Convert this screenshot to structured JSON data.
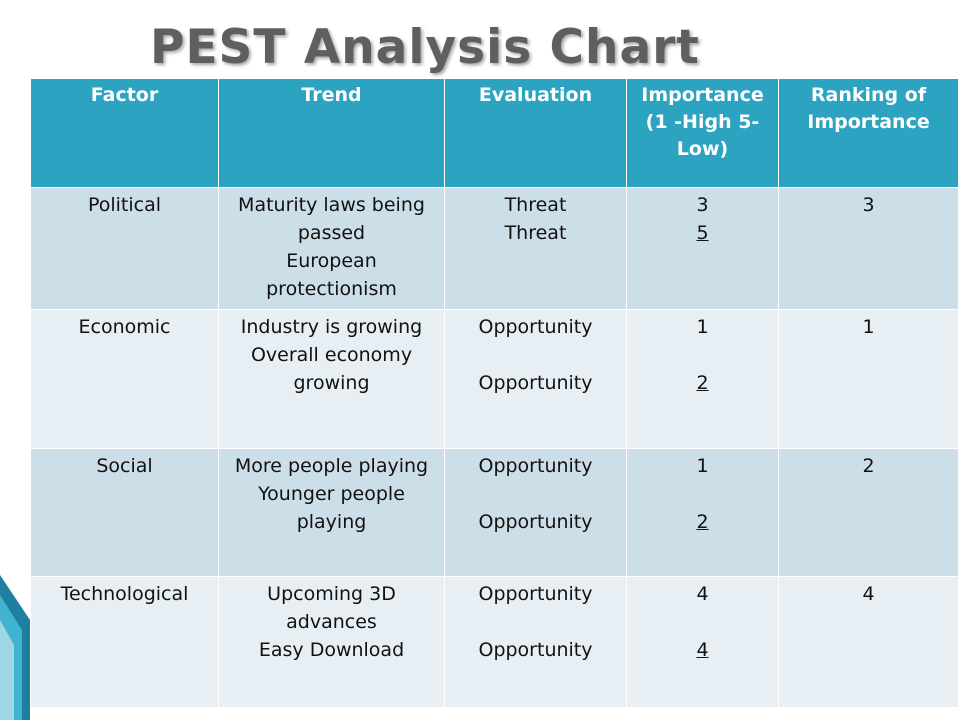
{
  "title": "PEST Analysis Chart",
  "header": {
    "factor": "Factor",
    "trend": "Trend",
    "evaluation": "Evaluation",
    "importance": "Importance (1 -High 5- Low)",
    "ranking": "Ranking of Importance"
  },
  "rows": [
    {
      "factor": "Political",
      "trend_1": "Maturity laws being passed",
      "trend_2": "European protectionism",
      "evaluation_1": "Threat",
      "evaluation_2": "Threat",
      "importance_1": "3",
      "importance_2": "5",
      "ranking": "3"
    },
    {
      "factor": "Economic",
      "trend_1": "Industry is growing",
      "trend_2": "Overall economy growing",
      "evaluation_1": "Opportunity",
      "evaluation_2": "Opportunity",
      "importance_1": "1",
      "importance_2": "2",
      "ranking": "1"
    },
    {
      "factor": "Social",
      "trend_1": "More people playing",
      "trend_2": "Younger people playing",
      "evaluation_1": "Opportunity",
      "evaluation_2": "Opportunity",
      "importance_1": "1",
      "importance_2": "2",
      "ranking": "2"
    },
    {
      "factor": "Technological",
      "trend_1": "Upcoming 3D advances",
      "trend_2": "Easy Download",
      "evaluation_1": "Opportunity",
      "evaluation_2": "Opportunity",
      "importance_1": "4",
      "importance_2": "4",
      "ranking": "4"
    }
  ],
  "colors": {
    "header_bg": "#2ca3c1",
    "row_dark": "#ccdfe8",
    "row_light": "#e7eff4",
    "title": "#5f5f5f"
  }
}
